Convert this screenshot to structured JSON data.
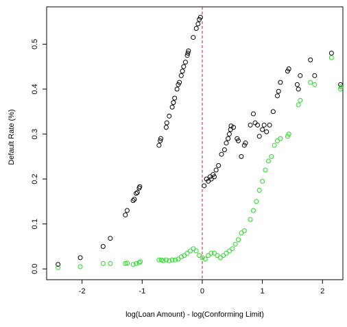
{
  "chart_data": {
    "type": "scatter",
    "xlabel": "log(Loan Amount) - log(Conforming Limit)",
    "ylabel": "Default Rate (%)",
    "xlim": [
      -2.59,
      2.34
    ],
    "ylim": [
      -0.024,
      0.583
    ],
    "xticks": [
      -2,
      -1,
      0,
      1,
      2
    ],
    "yticks": [
      {
        "value": 0,
        "label": "0.0"
      },
      0.1,
      0.2,
      0.3,
      0.4,
      0.5
    ],
    "vline": 0,
    "vline_color": "#a0302a",
    "series": [
      {
        "color": "#000000",
        "x": [
          -2.4,
          -2.03,
          -1.65,
          -1.53,
          -1.28,
          -1.25,
          -1.15,
          -1.13,
          -1.1,
          -1.08,
          -1.05,
          -1.04,
          -0.72,
          -0.7,
          -0.69,
          -0.6,
          -0.59,
          -0.55,
          -0.5,
          -0.48,
          -0.46,
          -0.42,
          -0.4,
          -0.38,
          -0.35,
          -0.33,
          -0.31,
          -0.28,
          -0.25,
          -0.24,
          -0.23,
          -0.15,
          -0.1,
          -0.07,
          -0.05,
          -0.03,
          0.03,
          0.07,
          0.1,
          0.13,
          0.15,
          0.18,
          0.2,
          0.23,
          0.27,
          0.32,
          0.37,
          0.4,
          0.43,
          0.45,
          0.47,
          0.48,
          0.52,
          0.58,
          0.6,
          0.65,
          0.7,
          0.72,
          0.8,
          0.85,
          0.88,
          0.92,
          0.95,
          1.0,
          1.03,
          1.07,
          1.12,
          1.18,
          1.25,
          1.27,
          1.3,
          1.42,
          1.44,
          1.58,
          1.6,
          1.63,
          1.8,
          1.87,
          2.15,
          2.3,
          2.31
        ],
        "values": [
          0.01,
          0.025,
          0.05,
          0.068,
          0.12,
          0.13,
          0.152,
          0.155,
          0.168,
          0.17,
          0.18,
          0.183,
          0.275,
          0.285,
          0.29,
          0.315,
          0.325,
          0.34,
          0.36,
          0.37,
          0.38,
          0.4,
          0.41,
          0.415,
          0.43,
          0.44,
          0.45,
          0.46,
          0.475,
          0.48,
          0.485,
          0.515,
          0.535,
          0.545,
          0.555,
          0.56,
          0.185,
          0.2,
          0.195,
          0.205,
          0.2,
          0.21,
          0.205,
          0.22,
          0.23,
          0.255,
          0.265,
          0.28,
          0.29,
          0.3,
          0.31,
          0.318,
          0.315,
          0.29,
          0.285,
          0.25,
          0.275,
          0.28,
          0.32,
          0.345,
          0.325,
          0.32,
          0.295,
          0.31,
          0.32,
          0.305,
          0.32,
          0.35,
          0.385,
          0.395,
          0.415,
          0.44,
          0.445,
          0.41,
          0.4,
          0.43,
          0.465,
          0.43,
          0.48,
          0.41,
          0.405
        ]
      },
      {
        "color": "#22dd22",
        "x": [
          -2.4,
          -2.03,
          -1.65,
          -1.53,
          -1.28,
          -1.25,
          -1.15,
          -1.1,
          -1.05,
          -1.03,
          -0.72,
          -0.68,
          -0.65,
          -0.6,
          -0.55,
          -0.5,
          -0.45,
          -0.4,
          -0.35,
          -0.3,
          -0.25,
          -0.2,
          -0.15,
          -0.1,
          -0.05,
          0.0,
          0.05,
          0.1,
          0.15,
          0.2,
          0.25,
          0.3,
          0.35,
          0.4,
          0.45,
          0.5,
          0.55,
          0.6,
          0.65,
          0.7,
          0.8,
          0.85,
          0.9,
          0.95,
          1.0,
          1.05,
          1.1,
          1.15,
          1.2,
          1.25,
          1.3,
          1.42,
          1.44,
          1.6,
          1.63,
          1.8,
          1.87,
          2.15,
          2.3,
          2.31
        ],
        "values": [
          0.003,
          0.005,
          0.012,
          0.012,
          0.012,
          0.013,
          0.01,
          0.012,
          0.014,
          0.016,
          0.02,
          0.02,
          0.018,
          0.02,
          0.018,
          0.02,
          0.02,
          0.022,
          0.027,
          0.03,
          0.035,
          0.04,
          0.045,
          0.04,
          0.03,
          0.025,
          0.022,
          0.03,
          0.035,
          0.035,
          0.03,
          0.025,
          0.03,
          0.035,
          0.04,
          0.045,
          0.055,
          0.065,
          0.08,
          0.085,
          0.11,
          0.13,
          0.15,
          0.175,
          0.195,
          0.22,
          0.24,
          0.25,
          0.275,
          0.285,
          0.29,
          0.295,
          0.3,
          0.365,
          0.375,
          0.415,
          0.41,
          0.47,
          0.4,
          0.405
        ]
      }
    ]
  }
}
